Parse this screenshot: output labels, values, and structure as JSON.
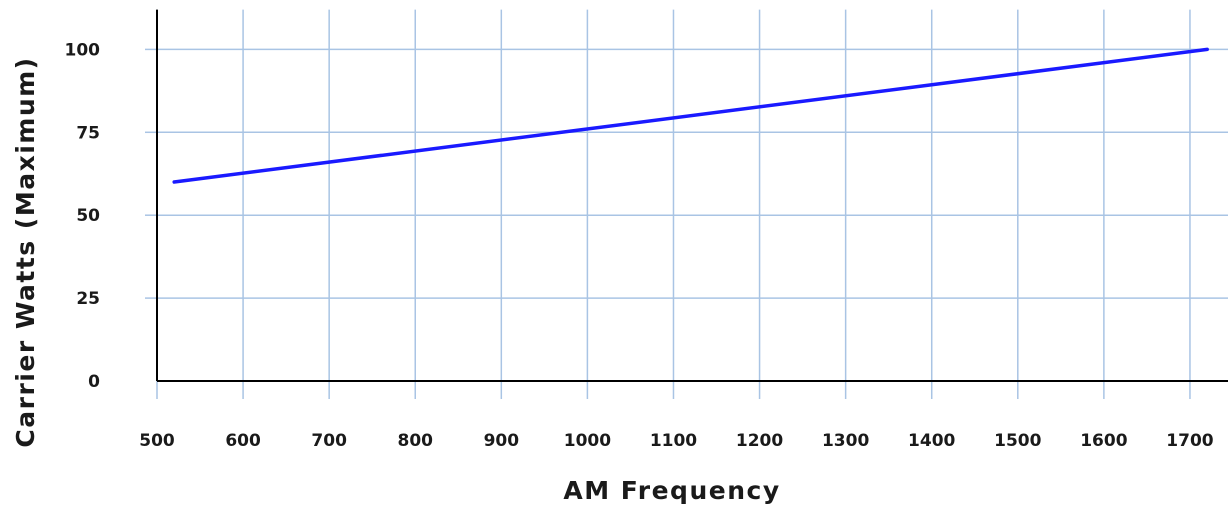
{
  "chart_data": {
    "type": "line",
    "title": "",
    "xlabel": "AM Frequency",
    "ylabel": "Carrier  Watts  (Maximum)",
    "x_ticks": [
      500,
      600,
      700,
      800,
      900,
      1000,
      1100,
      1200,
      1300,
      1400,
      1500,
      1600,
      1700
    ],
    "y_ticks": [
      0,
      25,
      50,
      75,
      100
    ],
    "xlim": [
      500,
      1740
    ],
    "ylim": [
      0,
      112
    ],
    "grid": true,
    "colors": {
      "line": "#1a1aff",
      "grid": "#a9c4e4",
      "axis": "#000000"
    },
    "series": [
      {
        "x": [
          520,
          1720
        ],
        "y": [
          60,
          100
        ]
      }
    ]
  }
}
